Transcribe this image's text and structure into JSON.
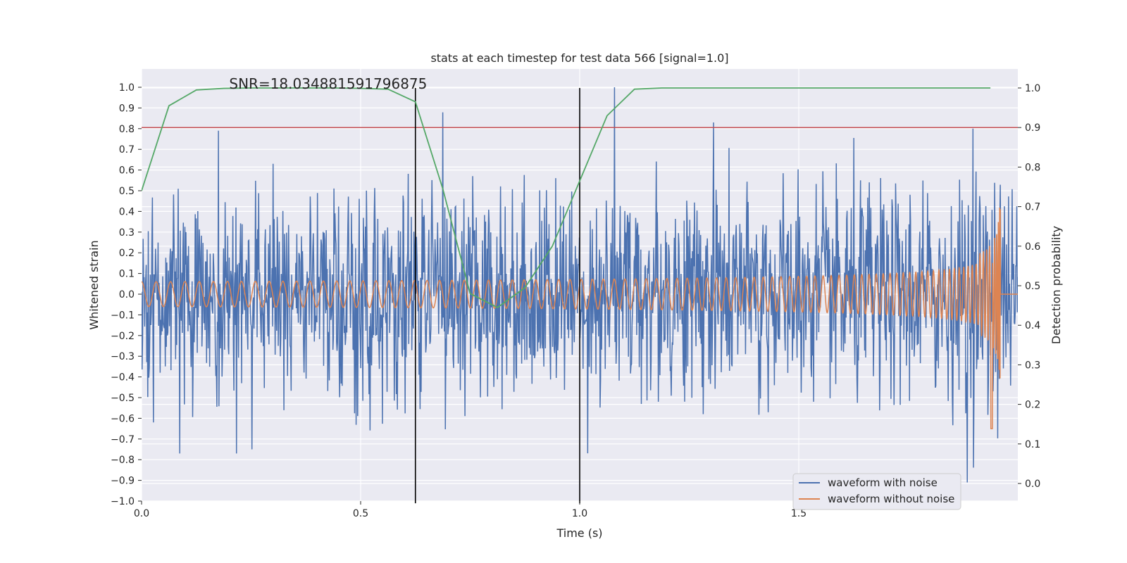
{
  "chart_data": {
    "type": "line",
    "title": "stats at each timestep for test data 566 [signal=1.0]",
    "xlabel": "Time (s)",
    "ylabel": "Whitened strain",
    "ylabel_right": "Detection probability",
    "xlim": [
      0.0,
      2.0
    ],
    "ylim": [
      -1.0,
      1.1
    ],
    "ylim_right": [
      -0.05,
      1.05
    ],
    "x_ticks": [
      0.0,
      0.5,
      1.0,
      1.5
    ],
    "x_tick_labels": [
      "0.0",
      "0.5",
      "1.0",
      "1.5"
    ],
    "y_ticks": [
      -1.0,
      -0.9,
      -0.8,
      -0.7,
      -0.6,
      -0.5,
      -0.4,
      -0.3,
      -0.2,
      -0.1,
      0.0,
      0.1,
      0.2,
      0.3,
      0.4,
      0.5,
      0.6,
      0.7,
      0.8,
      0.9,
      1.0
    ],
    "y_tick_labels": [
      "−1.0",
      "−0.9",
      "−0.8",
      "−0.7",
      "−0.6",
      "−0.5",
      "−0.4",
      "−0.3",
      "−0.2",
      "−0.1",
      "0.0",
      "0.1",
      "0.2",
      "0.3",
      "0.4",
      "0.5",
      "0.6",
      "0.7",
      "0.8",
      "0.9",
      "1.0"
    ],
    "y_ticks_right": [
      0.0,
      0.1,
      0.2,
      0.3,
      0.4,
      0.5,
      0.6,
      0.7,
      0.8,
      0.9,
      1.0
    ],
    "y_tick_labels_right": [
      "0.0",
      "0.1",
      "0.2",
      "0.3",
      "0.4",
      "0.5",
      "0.6",
      "0.7",
      "0.8",
      "0.9",
      "1.0"
    ],
    "annotation": "SNR=18.034881591796875",
    "annotation_pos": {
      "x": 0.2,
      "y": 1.0
    },
    "threshold": {
      "value": 0.9,
      "axis": "right",
      "color": "#c44e52"
    },
    "vlines": [
      {
        "x": 0.625,
        "ymin": -0.05,
        "ymax": 1.0
      },
      {
        "x": 1.0,
        "ymin": -0.05,
        "ymax": 1.0
      }
    ],
    "series": [
      {
        "name": "waveform with noise",
        "color": "#4c72b0",
        "axis": "left",
        "duration": 2.0,
        "n_points": 1700,
        "amplitude_std": 0.24,
        "peak_values": [
          {
            "x": 0.087,
            "y": -0.77
          },
          {
            "x": 0.175,
            "y": 0.79
          },
          {
            "x": 0.217,
            "y": -0.77
          },
          {
            "x": 0.252,
            "y": -0.75
          },
          {
            "x": 0.3,
            "y": 0.63
          },
          {
            "x": 1.08,
            "y": 1.0
          },
          {
            "x": 1.305,
            "y": 0.83
          },
          {
            "x": 1.885,
            "y": -0.91
          },
          {
            "x": 1.897,
            "y": 0.8
          }
        ]
      },
      {
        "name": "waveform without noise",
        "color": "#dd8452",
        "axis": "left",
        "t_merger": 1.96,
        "f0_hz": 30,
        "a0": 0.06,
        "peak_amplitude": 0.42,
        "min_value": -0.65
      },
      {
        "name": "detection probability",
        "color": "#55a868",
        "axis": "right",
        "x": [
          0.0,
          0.0625,
          0.125,
          0.1875,
          0.25,
          0.3125,
          0.375,
          0.4375,
          0.5,
          0.5625,
          0.625,
          0.6875,
          0.75,
          0.8125,
          0.875,
          0.9375,
          1.0,
          1.0625,
          1.125,
          1.1875,
          1.25,
          1.3125,
          1.375,
          1.4375,
          1.5,
          1.5625,
          1.625,
          1.6875,
          1.75,
          1.8125,
          1.875,
          1.9375
        ],
        "values": [
          0.74,
          0.955,
          0.995,
          0.999,
          1.0,
          1.0,
          1.0,
          1.0,
          0.999,
          0.997,
          0.965,
          0.745,
          0.48,
          0.445,
          0.495,
          0.6,
          0.765,
          0.93,
          0.997,
          1.0,
          1.0,
          1.0,
          1.0,
          1.0,
          1.0,
          1.0,
          1.0,
          1.0,
          1.0,
          1.0,
          1.0,
          1.0
        ]
      }
    ],
    "legend": {
      "position": "lower right",
      "entries": [
        "waveform with noise",
        "waveform without noise"
      ]
    },
    "grid": true,
    "background": "#eaeaf2"
  }
}
